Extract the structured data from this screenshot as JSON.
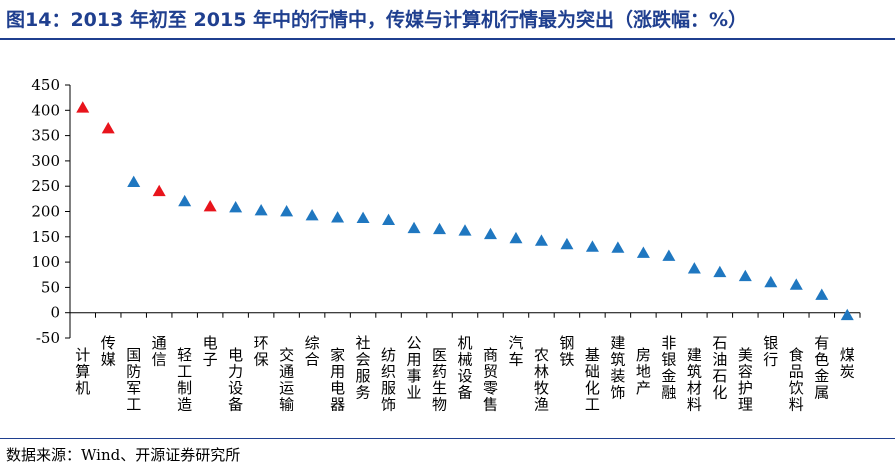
{
  "title": "图14：2013 年初至 2015 年中的行情中，传媒与计算机行情最为突出（涨跌幅：%）",
  "source": "数据来源：Wind、开源证券研究所",
  "chart_data": {
    "type": "scatter",
    "marker": "triangle",
    "ylim": [
      -50,
      450
    ],
    "yticks": [
      -50,
      0,
      50,
      100,
      150,
      200,
      250,
      300,
      350,
      400,
      450
    ],
    "grid": false,
    "colors": {
      "highlight": "#e8141c",
      "normal": "#1f77c0",
      "axis": "#000000"
    },
    "categories": [
      "计算机",
      "传媒",
      "国防军工",
      "通信",
      "轻工制造",
      "电子",
      "电力设备",
      "环保",
      "交通运输",
      "综合",
      "家用电器",
      "社会服务",
      "纺织服饰",
      "公用事业",
      "医药生物",
      "机械设备",
      "商贸零售",
      "汽车",
      "农林牧渔",
      "钢铁",
      "基础化工",
      "建筑装饰",
      "房地产",
      "非银金融",
      "建筑材料",
      "石油石化",
      "美容护理",
      "银行",
      "食品饮料",
      "有色金属",
      "煤炭"
    ],
    "values": [
      405,
      364,
      258,
      240,
      220,
      210,
      208,
      202,
      200,
      192,
      188,
      187,
      183,
      167,
      165,
      162,
      155,
      147,
      142,
      135,
      130,
      128,
      118,
      112,
      87,
      80,
      72,
      60,
      55,
      35,
      -5
    ],
    "highlight": [
      true,
      true,
      false,
      true,
      false,
      true,
      false,
      false,
      false,
      false,
      false,
      false,
      false,
      false,
      false,
      false,
      false,
      false,
      false,
      false,
      false,
      false,
      false,
      false,
      false,
      false,
      false,
      false,
      false,
      false,
      false
    ]
  }
}
